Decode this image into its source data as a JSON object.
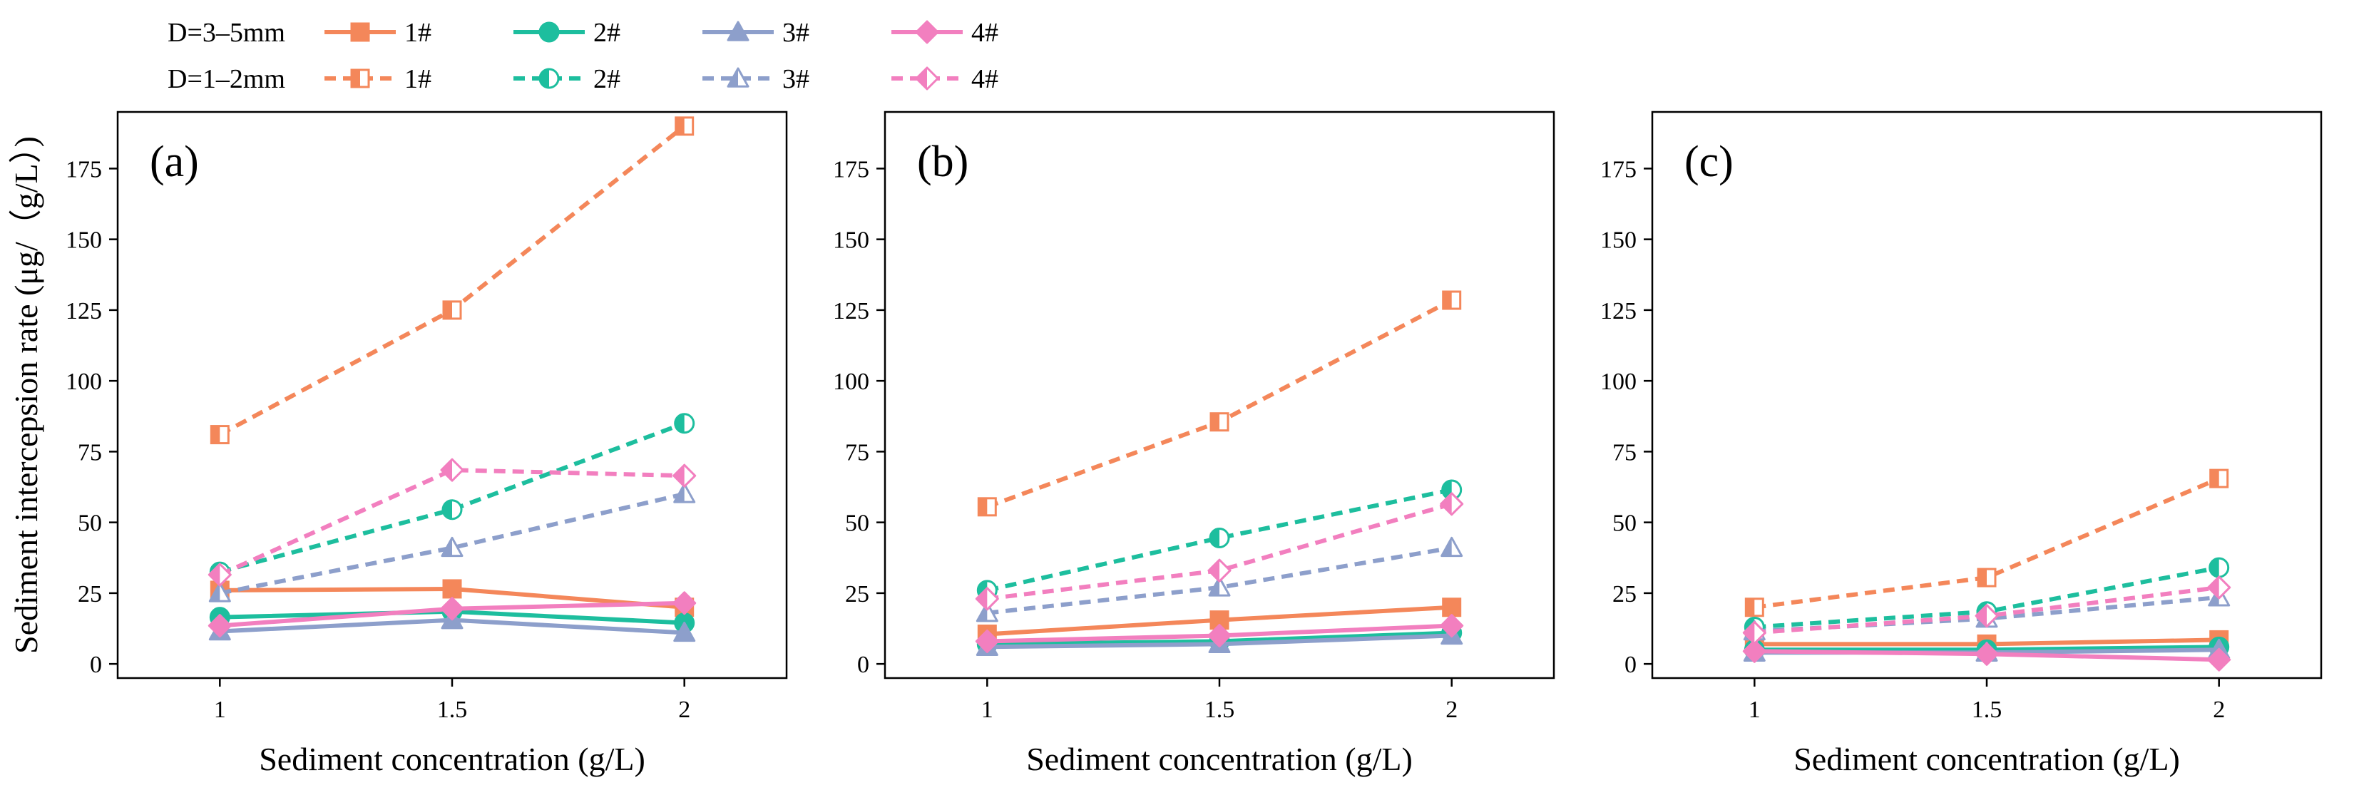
{
  "legend": {
    "groups": [
      {
        "label": "D=3–5mm",
        "style": "solid"
      },
      {
        "label": "D=1–2mm",
        "style": "dashed"
      }
    ],
    "items": [
      {
        "label": "1#",
        "color": "#F4875A",
        "marker": "square"
      },
      {
        "label": "2#",
        "color": "#1DBE9E",
        "marker": "circle"
      },
      {
        "label": "3#",
        "color": "#8D9FCB",
        "marker": "triangle"
      },
      {
        "label": "4#",
        "color": "#F27FBF",
        "marker": "diamond"
      }
    ]
  },
  "chart_data": [
    {
      "type": "line",
      "panel_label": "(a)",
      "xlabel": "Sediment concentration (g/L)",
      "ylabel": "Sediment intercepsion rate (μg/（g/L）)",
      "x": [
        1,
        1.5,
        2
      ],
      "xticks": [
        "1",
        "1.5",
        "2"
      ],
      "ylim": [
        -5,
        195
      ],
      "yticks": [
        0,
        25,
        50,
        75,
        100,
        125,
        150,
        175
      ],
      "grid": false,
      "series": [
        {
          "name": "D=3–5mm 1#",
          "values": [
            26,
            26.5,
            20
          ]
        },
        {
          "name": "D=3–5mm 2#",
          "values": [
            16.5,
            18.5,
            14.5
          ]
        },
        {
          "name": "D=3–5mm 3#",
          "values": [
            11.5,
            15.5,
            11
          ]
        },
        {
          "name": "D=3–5mm 4#",
          "values": [
            13.5,
            19.5,
            21.5
          ]
        },
        {
          "name": "D=1–2mm 1#",
          "values": [
            81,
            125,
            190
          ]
        },
        {
          "name": "D=1–2mm 2#",
          "values": [
            32.5,
            54.5,
            85
          ]
        },
        {
          "name": "D=1–2mm 3#",
          "values": [
            25,
            41,
            60
          ]
        },
        {
          "name": "D=1–2mm 4#",
          "values": [
            31.5,
            68.5,
            66.5
          ]
        }
      ]
    },
    {
      "type": "line",
      "panel_label": "(b)",
      "xlabel": "Sediment concentration (g/L)",
      "ylabel": "",
      "x": [
        1,
        1.5,
        2
      ],
      "xticks": [
        "1",
        "1.5",
        "2"
      ],
      "ylim": [
        -5,
        195
      ],
      "yticks": [
        0,
        25,
        50,
        75,
        100,
        125,
        150,
        175
      ],
      "grid": false,
      "series": [
        {
          "name": "D=3–5mm 1#",
          "values": [
            10.5,
            15.5,
            20
          ]
        },
        {
          "name": "D=3–5mm 2#",
          "values": [
            7,
            8,
            11
          ]
        },
        {
          "name": "D=3–5mm 3#",
          "values": [
            6,
            7,
            10
          ]
        },
        {
          "name": "D=3–5mm 4#",
          "values": [
            8,
            10,
            13.5
          ]
        },
        {
          "name": "D=1–2mm 1#",
          "values": [
            55.5,
            85.5,
            128.5
          ]
        },
        {
          "name": "D=1–2mm 2#",
          "values": [
            26,
            44.5,
            61.5
          ]
        },
        {
          "name": "D=1–2mm 3#",
          "values": [
            18,
            27,
            41
          ]
        },
        {
          "name": "D=1–2mm 4#",
          "values": [
            23,
            33,
            56.5
          ]
        }
      ]
    },
    {
      "type": "line",
      "panel_label": "(c)",
      "xlabel": "Sediment concentration (g/L)",
      "ylabel": "",
      "x": [
        1,
        1.5,
        2
      ],
      "xticks": [
        "1",
        "1.5",
        "2"
      ],
      "ylim": [
        -5,
        195
      ],
      "yticks": [
        0,
        25,
        50,
        75,
        100,
        125,
        150,
        175
      ],
      "grid": false,
      "series": [
        {
          "name": "D=3–5mm 1#",
          "values": [
            7,
            7,
            8.5
          ]
        },
        {
          "name": "D=3–5mm 2#",
          "values": [
            5,
            5,
            6
          ]
        },
        {
          "name": "D=3–5mm 3#",
          "values": [
            4,
            4,
            5
          ]
        },
        {
          "name": "D=3–5mm 4#",
          "values": [
            4.5,
            3.5,
            1.5
          ]
        },
        {
          "name": "D=1–2mm 1#",
          "values": [
            20,
            30.5,
            65.5
          ]
        },
        {
          "name": "D=1–2mm 2#",
          "values": [
            13,
            18.5,
            34
          ]
        },
        {
          "name": "D=1–2mm 3#",
          "values": [
            11.5,
            16,
            23.5
          ]
        },
        {
          "name": "D=1–2mm 4#",
          "values": [
            11,
            17,
            27
          ]
        }
      ]
    }
  ]
}
